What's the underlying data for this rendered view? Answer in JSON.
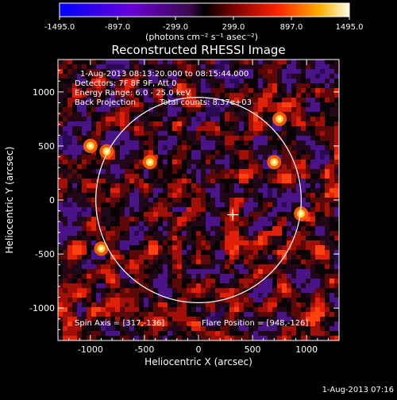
{
  "colorbar": {
    "ticks": [
      "-1495.0",
      "-897.0",
      "-299.0",
      "299.0",
      "897.0",
      "1495.0"
    ],
    "unit_label": "(photons cm⁻² s⁻¹ asec⁻²)",
    "min": -1495.0,
    "max": 1495.0
  },
  "plot": {
    "title": "Reconstructed RHESSI Image",
    "time_range": "1-Aug-2013 08:13:20.000 to 08:15:44.000",
    "detectors": "Detectors: 7F 8F 9F, Att 0",
    "energy_range": "Energy Range: 6.0 - 25.0 keV",
    "method_label": "Back Projection",
    "total_counts": "Total counts: 8.37e+03",
    "spin_axis": "Spin Axis = [317,-136]",
    "flare_position": "Flare Position = [948,-126]",
    "timestamp": "1-Aug-2013 07:16"
  },
  "chart_data": {
    "type": "heatmap",
    "title": "Reconstructed RHESSI Image",
    "xlabel": "Heliocentric X (arcsec)",
    "ylabel": "Heliocentric Y (arcsec)",
    "xlim": [
      -1300,
      1300
    ],
    "ylim": [
      -1300,
      1300
    ],
    "xticks": [
      -1000,
      -500,
      0,
      500,
      1000
    ],
    "yticks": [
      -1000,
      -500,
      0,
      500,
      1000
    ],
    "colorbar_range": [
      -1495.0,
      1495.0
    ],
    "solar_limb_radius_arcsec": 950,
    "spin_axis": [
      317,
      -136
    ],
    "flare_position": [
      948,
      -126
    ],
    "bright_spots": [
      {
        "x": 948,
        "y": -126
      },
      {
        "x": -1000,
        "y": 500
      },
      {
        "x": -850,
        "y": 450
      },
      {
        "x": -450,
        "y": 350
      },
      {
        "x": -900,
        "y": -450
      },
      {
        "x": 750,
        "y": 750
      },
      {
        "x": 700,
        "y": 350
      }
    ]
  }
}
